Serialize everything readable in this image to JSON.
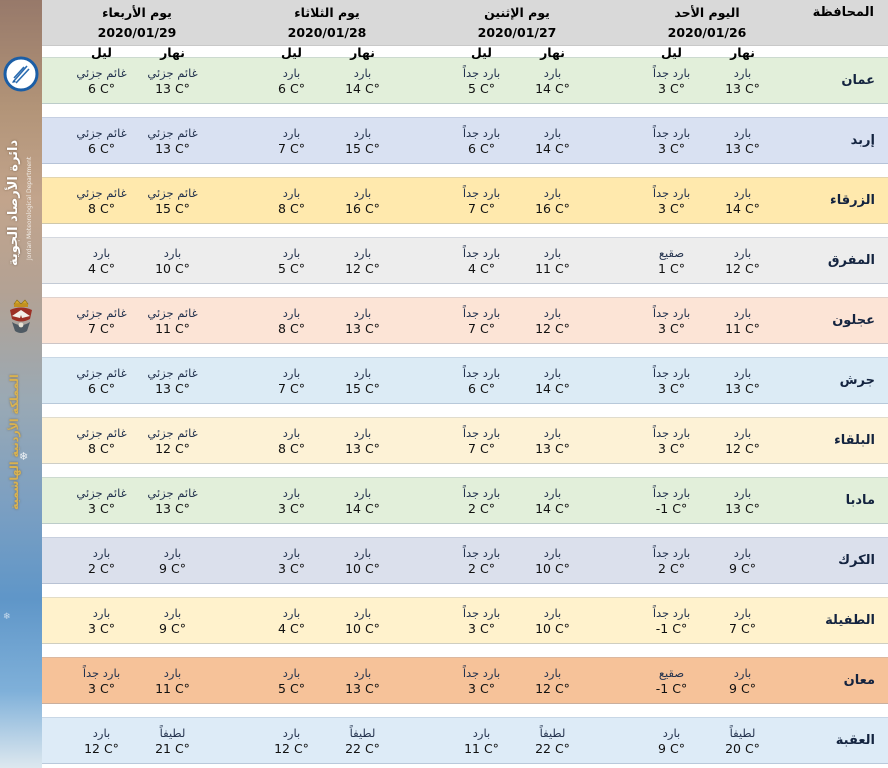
{
  "colors": {
    "header_bg": "#d9d9d9"
  },
  "sidebar": {
    "org_name_ar": "دائرة الأرصاد الجوية",
    "org_name_en": "Jordan Meteorological Department",
    "kingdom_text": "المملكة الأردنية الهاشمية",
    "snowflake_glyph": "❄"
  },
  "table": {
    "governorate_header": "المحافظة",
    "day_label": "نهار",
    "night_label": "ليل",
    "days": [
      {
        "title": "اليوم الأحد 2020/01/26"
      },
      {
        "title": "يوم الإثنين 2020/01/27"
      },
      {
        "title": "يوم الثلاثاء 2020/01/28"
      },
      {
        "title": "يوم الأربعاء 2020/01/29"
      }
    ],
    "rows": [
      {
        "governorate": "عمان",
        "color": "#e2efda",
        "days": [
          {
            "day": {
              "cond": "بارد",
              "temp": "13 C°"
            },
            "night": {
              "cond": "بارد جداً",
              "temp": "3 C°"
            }
          },
          {
            "day": {
              "cond": "بارد",
              "temp": "14 C°"
            },
            "night": {
              "cond": "بارد جداً",
              "temp": "5 C°"
            }
          },
          {
            "day": {
              "cond": "بارد",
              "temp": "14 C°"
            },
            "night": {
              "cond": "بارد",
              "temp": "6 C°"
            }
          },
          {
            "day": {
              "cond": "غائم جزئي",
              "temp": "13 C°"
            },
            "night": {
              "cond": "غائم جزئي",
              "temp": "6 C°"
            }
          }
        ]
      },
      {
        "governorate": "إربد",
        "color": "#d9e1f2",
        "days": [
          {
            "day": {
              "cond": "بارد",
              "temp": "13 C°"
            },
            "night": {
              "cond": "بارد جداً",
              "temp": "3 C°"
            }
          },
          {
            "day": {
              "cond": "بارد",
              "temp": "14 C°"
            },
            "night": {
              "cond": "بارد جداً",
              "temp": "6 C°"
            }
          },
          {
            "day": {
              "cond": "بارد",
              "temp": "15 C°"
            },
            "night": {
              "cond": "بارد",
              "temp": "7 C°"
            }
          },
          {
            "day": {
              "cond": "غائم جزئي",
              "temp": "13 C°"
            },
            "night": {
              "cond": "غائم جزئي",
              "temp": "6 C°"
            }
          }
        ]
      },
      {
        "governorate": "الزرقاء",
        "color": "#ffe9ad",
        "days": [
          {
            "day": {
              "cond": "بارد",
              "temp": "14 C°"
            },
            "night": {
              "cond": "بارد جداً",
              "temp": "3 C°"
            }
          },
          {
            "day": {
              "cond": "بارد",
              "temp": "16 C°"
            },
            "night": {
              "cond": "بارد جداً",
              "temp": "7 C°"
            }
          },
          {
            "day": {
              "cond": "بارد",
              "temp": "16 C°"
            },
            "night": {
              "cond": "بارد",
              "temp": "8 C°"
            }
          },
          {
            "day": {
              "cond": "غائم جزئي",
              "temp": "15 C°"
            },
            "night": {
              "cond": "غائم جزئي",
              "temp": "8 C°"
            }
          }
        ]
      },
      {
        "governorate": "المفرق",
        "color": "#ededed",
        "days": [
          {
            "day": {
              "cond": "بارد",
              "temp": "12 C°"
            },
            "night": {
              "cond": "صقيع",
              "temp": "1 C°"
            }
          },
          {
            "day": {
              "cond": "بارد",
              "temp": "11 C°"
            },
            "night": {
              "cond": "بارد جداً",
              "temp": "4 C°"
            }
          },
          {
            "day": {
              "cond": "بارد",
              "temp": "12 C°"
            },
            "night": {
              "cond": "بارد",
              "temp": "5 C°"
            }
          },
          {
            "day": {
              "cond": "بارد",
              "temp": "10 C°"
            },
            "night": {
              "cond": "بارد",
              "temp": "4 C°"
            }
          }
        ]
      },
      {
        "governorate": "عجلون",
        "color": "#fce4d6",
        "days": [
          {
            "day": {
              "cond": "بارد",
              "temp": "11 C°"
            },
            "night": {
              "cond": "بارد جداً",
              "temp": "3 C°"
            }
          },
          {
            "day": {
              "cond": "بارد",
              "temp": "12 C°"
            },
            "night": {
              "cond": "بارد جداً",
              "temp": "7 C°"
            }
          },
          {
            "day": {
              "cond": "بارد",
              "temp": "13 C°"
            },
            "night": {
              "cond": "بارد",
              "temp": "8 C°"
            }
          },
          {
            "day": {
              "cond": "غائم جزئي",
              "temp": "11 C°"
            },
            "night": {
              "cond": "غائم جزئي",
              "temp": "7 C°"
            }
          }
        ]
      },
      {
        "governorate": "جرش",
        "color": "#dcebf5",
        "days": [
          {
            "day": {
              "cond": "بارد",
              "temp": "13 C°"
            },
            "night": {
              "cond": "بارد جداً",
              "temp": "3 C°"
            }
          },
          {
            "day": {
              "cond": "بارد",
              "temp": "14 C°"
            },
            "night": {
              "cond": "بارد جداً",
              "temp": "6 C°"
            }
          },
          {
            "day": {
              "cond": "بارد",
              "temp": "15 C°"
            },
            "night": {
              "cond": "بارد",
              "temp": "7 C°"
            }
          },
          {
            "day": {
              "cond": "غائم جزئي",
              "temp": "13 C°"
            },
            "night": {
              "cond": "غائم جزئي",
              "temp": "6 C°"
            }
          }
        ]
      },
      {
        "governorate": "البلقاء",
        "color": "#fdf2d6",
        "days": [
          {
            "day": {
              "cond": "بارد",
              "temp": "12 C°"
            },
            "night": {
              "cond": "بارد جداً",
              "temp": "3 C°"
            }
          },
          {
            "day": {
              "cond": "بارد",
              "temp": "13 C°"
            },
            "night": {
              "cond": "بارد جداً",
              "temp": "7 C°"
            }
          },
          {
            "day": {
              "cond": "بارد",
              "temp": "13 C°"
            },
            "night": {
              "cond": "بارد",
              "temp": "8 C°"
            }
          },
          {
            "day": {
              "cond": "غائم جزئي",
              "temp": "12 C°"
            },
            "night": {
              "cond": "غائم جزئي",
              "temp": "8 C°"
            }
          }
        ]
      },
      {
        "governorate": "مادبا",
        "color": "#e2efda",
        "days": [
          {
            "day": {
              "cond": "بارد",
              "temp": "13 C°"
            },
            "night": {
              "cond": "بارد جداً",
              "temp": "-1 C°"
            }
          },
          {
            "day": {
              "cond": "بارد",
              "temp": "14 C°"
            },
            "night": {
              "cond": "بارد جداً",
              "temp": "2 C°"
            }
          },
          {
            "day": {
              "cond": "بارد",
              "temp": "14 C°"
            },
            "night": {
              "cond": "بارد",
              "temp": "3 C°"
            }
          },
          {
            "day": {
              "cond": "غائم جزئي",
              "temp": "13 C°"
            },
            "night": {
              "cond": "غائم جزئي",
              "temp": "3 C°"
            }
          }
        ]
      },
      {
        "governorate": "الكرك",
        "color": "#dbe0ec",
        "days": [
          {
            "day": {
              "cond": "بارد",
              "temp": "9 C°"
            },
            "night": {
              "cond": "بارد جداً",
              "temp": "2 C°"
            }
          },
          {
            "day": {
              "cond": "بارد",
              "temp": "10 C°"
            },
            "night": {
              "cond": "بارد جداً",
              "temp": "2 C°"
            }
          },
          {
            "day": {
              "cond": "بارد",
              "temp": "10 C°"
            },
            "night": {
              "cond": "بارد",
              "temp": "3 C°"
            }
          },
          {
            "day": {
              "cond": "بارد",
              "temp": "9 C°"
            },
            "night": {
              "cond": "بارد",
              "temp": "2 C°"
            }
          }
        ]
      },
      {
        "governorate": "الطفيلة",
        "color": "#fff2cc",
        "days": [
          {
            "day": {
              "cond": "بارد",
              "temp": "7 C°"
            },
            "night": {
              "cond": "بارد جداً",
              "temp": "-1 C°"
            }
          },
          {
            "day": {
              "cond": "بارد",
              "temp": "10 C°"
            },
            "night": {
              "cond": "بارد جداً",
              "temp": "3 C°"
            }
          },
          {
            "day": {
              "cond": "بارد",
              "temp": "10 C°"
            },
            "night": {
              "cond": "بارد",
              "temp": "4 C°"
            }
          },
          {
            "day": {
              "cond": "بارد",
              "temp": "9 C°"
            },
            "night": {
              "cond": "بارد",
              "temp": "3 C°"
            }
          }
        ]
      },
      {
        "governorate": "معان",
        "color": "#f6c299",
        "days": [
          {
            "day": {
              "cond": "بارد",
              "temp": "9 C°"
            },
            "night": {
              "cond": "صقيع",
              "temp": "-1 C°"
            }
          },
          {
            "day": {
              "cond": "بارد",
              "temp": "12 C°"
            },
            "night": {
              "cond": "بارد جداً",
              "temp": "3 C°"
            }
          },
          {
            "day": {
              "cond": "بارد",
              "temp": "13 C°"
            },
            "night": {
              "cond": "بارد",
              "temp": "5 C°"
            }
          },
          {
            "day": {
              "cond": "بارد",
              "temp": "11 C°"
            },
            "night": {
              "cond": "بارد جداً",
              "temp": "3 C°"
            }
          }
        ]
      },
      {
        "governorate": "العقبة",
        "color": "#ddebf7",
        "days": [
          {
            "day": {
              "cond": "لطيفاً",
              "temp": "20 C°"
            },
            "night": {
              "cond": "بارد",
              "temp": "9 C°"
            }
          },
          {
            "day": {
              "cond": "لطيفاً",
              "temp": "22 C°"
            },
            "night": {
              "cond": "بارد",
              "temp": "11 C°"
            }
          },
          {
            "day": {
              "cond": "لطيفاً",
              "temp": "22 C°"
            },
            "night": {
              "cond": "بارد",
              "temp": "12 C°"
            }
          },
          {
            "day": {
              "cond": "لطيفاً",
              "temp": "21 C°"
            },
            "night": {
              "cond": "بارد",
              "temp": "12 C°"
            }
          }
        ]
      }
    ]
  }
}
